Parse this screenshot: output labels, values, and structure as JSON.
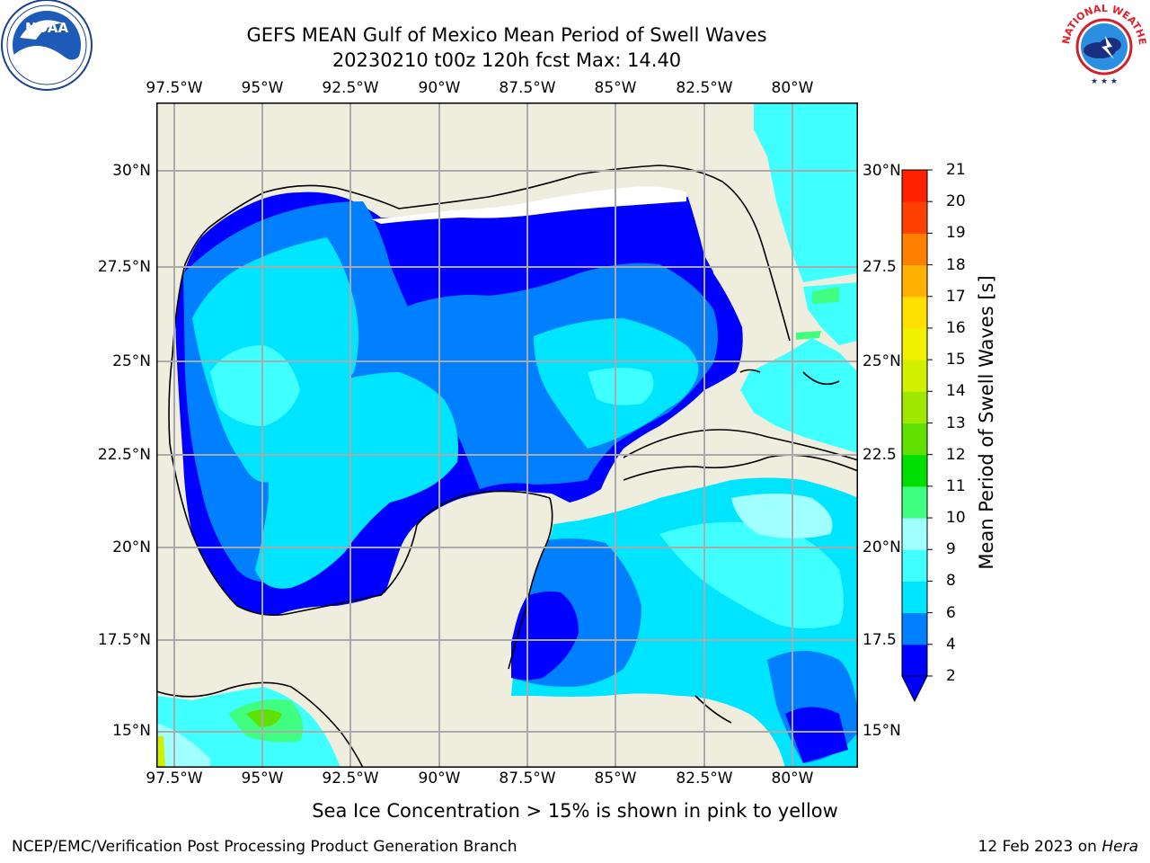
{
  "header": {
    "title_line1": "GEFS MEAN Gulf of Mexico Mean Period of Swell Waves",
    "title_line2": "20230210 t00z 120h fcst   Max: 14.40"
  },
  "map": {
    "lon_labels": [
      "97.5°W",
      "95°W",
      "92.5°W",
      "90°W",
      "87.5°W",
      "85°W",
      "82.5°W",
      "80°W"
    ],
    "lat_labels_left": [
      "30°N",
      "27.5°N",
      "25°N",
      "22.5°N",
      "20°N",
      "17.5°N",
      "15°N"
    ],
    "lat_labels_right": [
      "30°N",
      "27.5",
      "25°N",
      "22.5",
      "20°N",
      "17.5",
      "15°N"
    ]
  },
  "colorbar": {
    "label": "Mean Period of Swell Waves [s]",
    "ticks": [
      "2",
      "4",
      "6",
      "8",
      "9",
      "10",
      "11",
      "12",
      "13",
      "14",
      "15",
      "16",
      "17",
      "18",
      "19",
      "20",
      "21"
    ],
    "colors": [
      "#0000ff",
      "#0080ff",
      "#00e5ff",
      "#40ffff",
      "#a0ffff",
      "#40ff80",
      "#00e000",
      "#60e000",
      "#a0e800",
      "#d0f000",
      "#f0f000",
      "#ffe000",
      "#ffb000",
      "#ff8000",
      "#ff4000",
      "#ff2000"
    ]
  },
  "footer": {
    "note": "Sea Ice Concentration > 15% is shown in pink to yellow",
    "credit": "NCEP/EMC/Verification Post Processing Product Generation Branch",
    "date": "12 Feb 2023 on",
    "machine": "Hera"
  },
  "logos": {
    "noaa_text": "NOAA",
    "nws_text": "NATIONAL WEATHER SERVICE"
  }
}
